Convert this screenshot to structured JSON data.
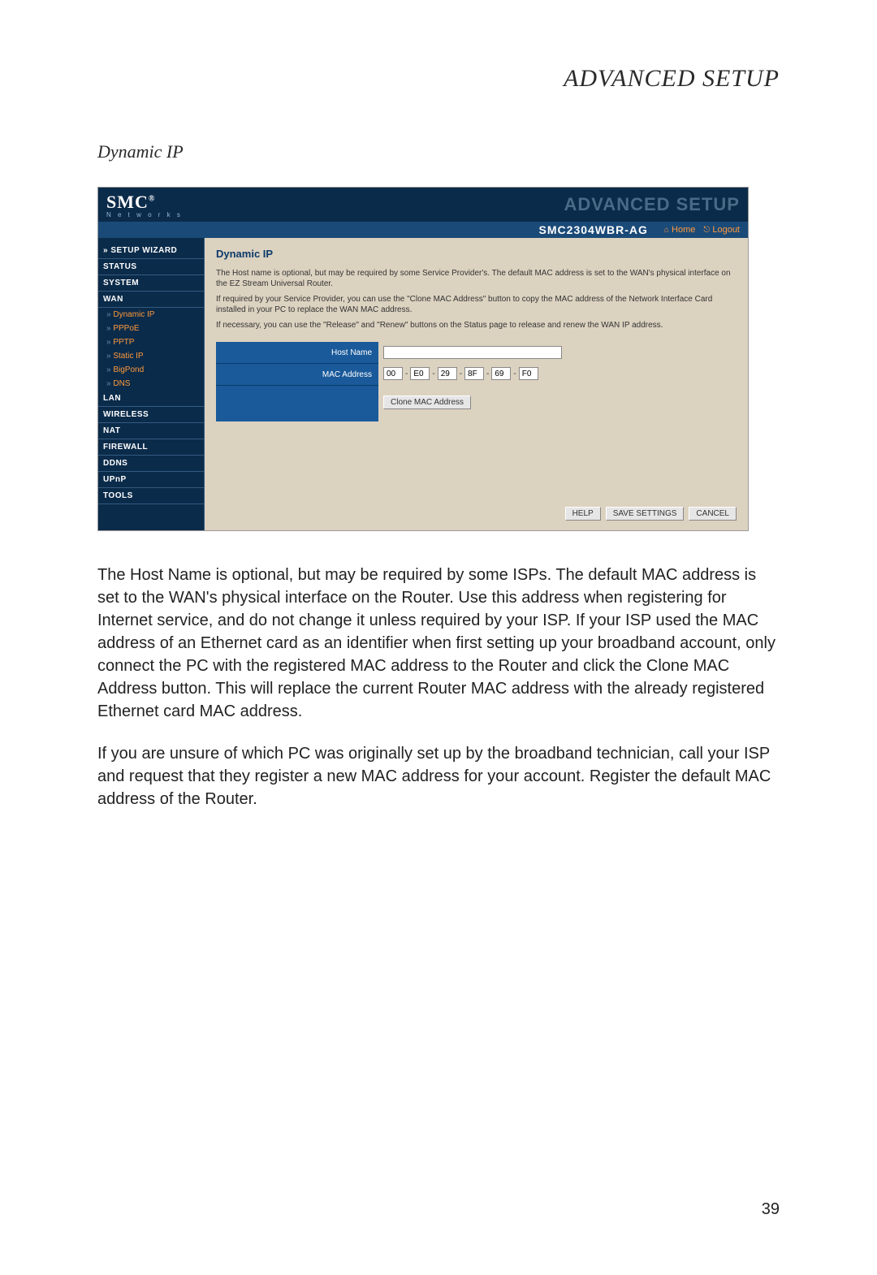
{
  "doc_header": "ADVANCED SETUP",
  "section_title": "Dynamic IP",
  "router": {
    "logo": "SMC",
    "logo_reg": "®",
    "logo_sub": "N e t w o r k s",
    "adv_title": "ADVANCED SETUP",
    "model": "SMC2304WBR-AG",
    "home_link": "Home",
    "logout_link": "Logout",
    "sidebar": {
      "setup_wizard": "» SETUP WIZARD",
      "status": "STATUS",
      "system": "SYSTEM",
      "wan": "WAN",
      "wan_items": [
        "Dynamic IP",
        "PPPoE",
        "PPTP",
        "Static IP",
        "BigPond",
        "DNS"
      ],
      "lan": "LAN",
      "wireless": "WIRELESS",
      "nat": "NAT",
      "firewall": "FIREWALL",
      "ddns": "DDNS",
      "upnp": "UPnP",
      "tools": "TOOLS"
    },
    "main": {
      "title": "Dynamic IP",
      "p1": "The Host name is optional, but may be required by some Service Provider's. The default MAC address is set to the WAN's physical interface on the EZ Stream Universal Router.",
      "p2": "If required by your Service Provider, you can use the \"Clone MAC Address\" button to copy the MAC address of the Network Interface Card installed in your PC to replace the WAN MAC address.",
      "p3": "If necessary, you can use the \"Release\" and \"Renew\" buttons on the Status page to release and renew the WAN IP address.",
      "host_name_label": "Host Name",
      "mac_label": "MAC Address",
      "mac": [
        "00",
        "E0",
        "29",
        "8F",
        "69",
        "F0"
      ],
      "clone_btn": "Clone MAC Address",
      "help_btn": "HELP",
      "save_btn": "SAVE SETTINGS",
      "cancel_btn": "CANCEL",
      "host_name_value": ""
    }
  },
  "body_p1": "The Host Name is optional, but may be required by some ISPs. The default MAC address is set to the WAN's physical interface on the Router. Use this address when registering for Internet service, and do not change it unless required by your ISP. If your ISP used the MAC address of an Ethernet card as an identifier when first setting up your broadband account, only connect the PC with the registered MAC address to the Router and click the Clone MAC Address button. This will replace the current Router MAC address with the already registered Ethernet card MAC address.",
  "body_p2": "If you are unsure of which PC was originally set up by the broadband technician, call your ISP and request that they register a new MAC address for your account. Register the default MAC address of the Router.",
  "page_number": "39"
}
